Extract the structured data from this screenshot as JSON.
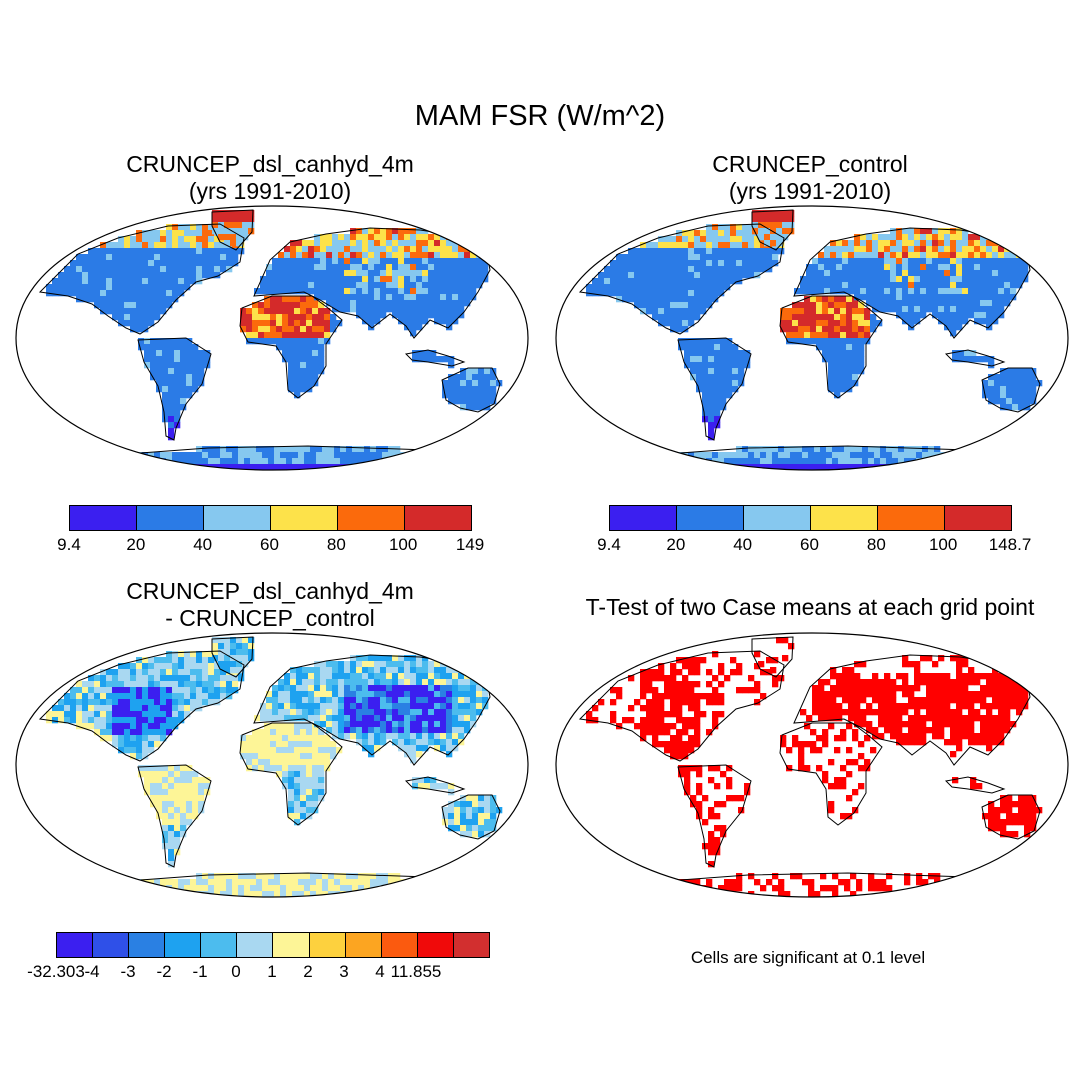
{
  "title": "MAM FSR (W/m^2)",
  "panels": [
    {
      "line1": "CRUNCEP_dsl_canhyd_4m",
      "line2": "(yrs 1991-2010)"
    },
    {
      "line1": "CRUNCEP_control",
      "line2": "(yrs 1991-2010)"
    },
    {
      "line1": "CRUNCEP_dsl_canhyd_4m",
      "line2": "- CRUNCEP_control"
    },
    {
      "line1": "T-Test of two Case means at each grid point"
    }
  ],
  "colorbars": {
    "abs_case": {
      "labels": [
        "9.4",
        "20",
        "40",
        "60",
        "80",
        "100",
        "149"
      ],
      "colors": [
        "#3b1ff0",
        "#2b7be6",
        "#86c8ef",
        "#fde24a",
        "#fb6a0c",
        "#d42a2a"
      ]
    },
    "abs_control": {
      "labels": [
        "9.4",
        "20",
        "40",
        "60",
        "80",
        "100",
        "148.7"
      ],
      "colors": [
        "#3b1ff0",
        "#2b7be6",
        "#86c8ef",
        "#fde24a",
        "#fb6a0c",
        "#d42a2a"
      ]
    },
    "diff": {
      "labels": [
        "-32.303",
        "-4",
        "-3",
        "-2",
        "-1",
        "0",
        "1",
        "2",
        "3",
        "4",
        "11.855"
      ],
      "colors": [
        "#3b1ff0",
        "#2f50e8",
        "#2a80e3",
        "#1ea2f0",
        "#4cbcee",
        "#a9d8f1",
        "#fdf597",
        "#fdd13e",
        "#fca521",
        "#fb5a0f",
        "#f00a0a",
        "#d22f2f"
      ]
    }
  },
  "significance_note": "Cells are significant at 0.1 level"
}
